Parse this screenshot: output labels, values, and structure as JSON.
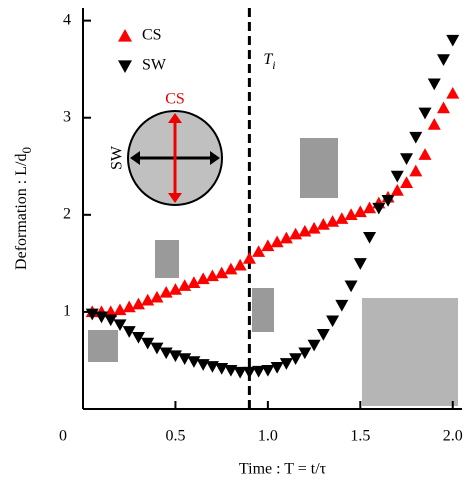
{
  "chart_data": {
    "type": "scatter",
    "xlabel": "Time : T = t/τ",
    "ylabel": {
      "text": "Deformation : L/d",
      "sub": "0"
    },
    "vline": {
      "x": 0.9,
      "label": {
        "text": "T",
        "sub": "i"
      }
    },
    "inset": {
      "vertical": "CS",
      "horizontal": "SW"
    },
    "x": [
      0.05,
      0.1,
      0.15,
      0.2,
      0.25,
      0.3,
      0.35,
      0.4,
      0.45,
      0.5,
      0.55,
      0.6,
      0.65,
      0.7,
      0.75,
      0.8,
      0.85,
      0.9,
      0.95,
      1.0,
      1.05,
      1.1,
      1.15,
      1.2,
      1.25,
      1.3,
      1.35,
      1.4,
      1.45,
      1.5,
      1.55,
      1.6,
      1.65,
      1.7,
      1.75,
      1.8,
      1.85,
      1.9,
      1.95,
      2.0
    ],
    "series": [
      {
        "name": "CS",
        "color": "#ff0000",
        "marker": "up",
        "values": [
          1.0,
          1.0,
          1.0,
          1.02,
          1.05,
          1.08,
          1.12,
          1.15,
          1.2,
          1.23,
          1.27,
          1.3,
          1.34,
          1.37,
          1.4,
          1.44,
          1.48,
          1.55,
          1.62,
          1.68,
          1.72,
          1.76,
          1.8,
          1.83,
          1.86,
          1.9,
          1.93,
          1.96,
          2.0,
          2.03,
          2.07,
          2.12,
          2.18,
          2.25,
          2.33,
          2.45,
          2.62,
          2.93,
          3.1,
          3.25
        ]
      },
      {
        "name": "SW",
        "color": "#000000",
        "marker": "down",
        "values": [
          0.98,
          0.95,
          0.92,
          0.87,
          0.8,
          0.74,
          0.68,
          0.63,
          0.58,
          0.55,
          0.52,
          0.49,
          0.46,
          0.44,
          0.42,
          0.4,
          0.38,
          0.38,
          0.39,
          0.4,
          0.43,
          0.47,
          0.52,
          0.58,
          0.66,
          0.77,
          0.91,
          1.07,
          1.27,
          1.5,
          1.77,
          2.07,
          2.15,
          2.4,
          2.58,
          2.8,
          3.05,
          3.35,
          3.6,
          3.8
        ]
      }
    ],
    "xlim": [
      0,
      2.05
    ],
    "ylim": [
      0,
      4.13
    ],
    "xticks": [
      0,
      0.5,
      {
        "value": 1,
        "label": "1.0"
      },
      1.5,
      {
        "value": 2,
        "label": "2.0"
      }
    ],
    "yticks": [
      1,
      2,
      3,
      4
    ]
  }
}
